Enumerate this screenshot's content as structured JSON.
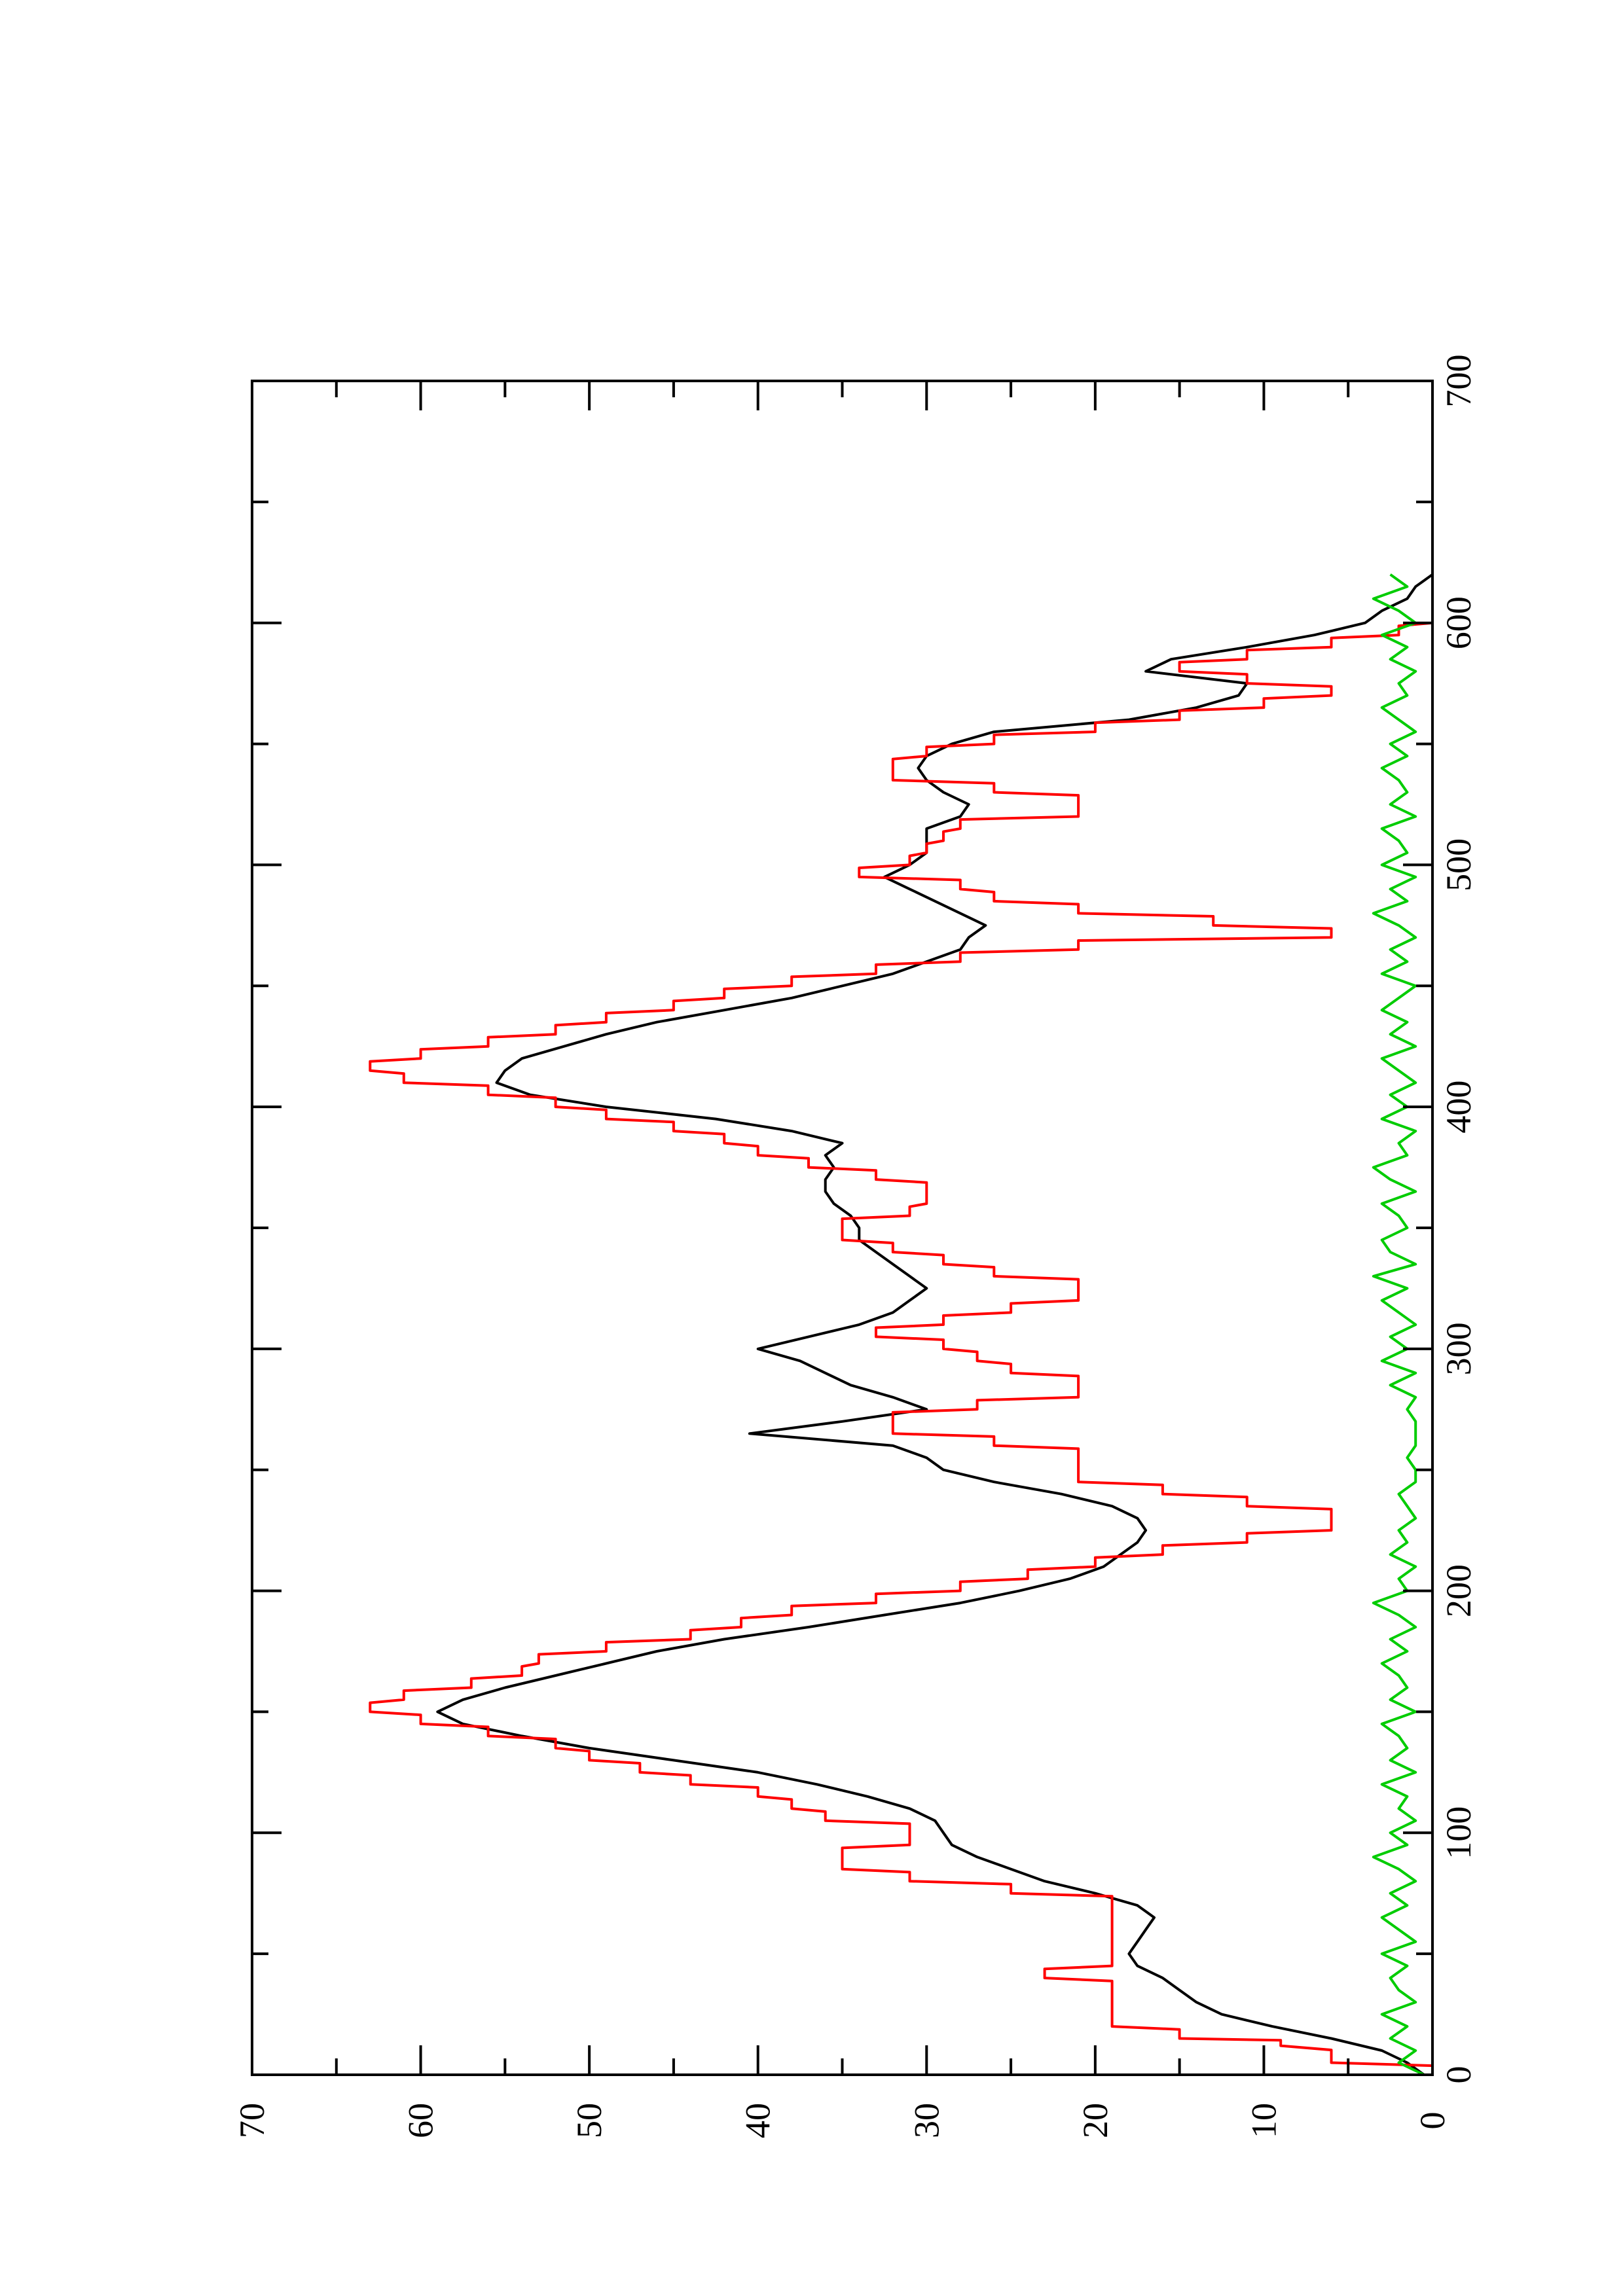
{
  "chart_data": {
    "type": "line",
    "title": "",
    "xlabel": "",
    "ylabel": "",
    "orientation": "rotated 90 degrees counter-clockwise",
    "xlim": [
      0,
      700
    ],
    "ylim": [
      0,
      70
    ],
    "x_ticks": [
      0,
      100,
      200,
      300,
      400,
      500,
      600,
      700
    ],
    "x_tick_labels": [
      "0",
      "100",
      "200",
      "300",
      "400",
      "500",
      "600",
      "700"
    ],
    "y_ticks": [
      0,
      10,
      20,
      30,
      40,
      50,
      60,
      70
    ],
    "y_tick_labels": [
      "0",
      "10",
      "20",
      "30",
      "40",
      "50",
      "60",
      "70"
    ],
    "grid": false,
    "legend": "none",
    "series": [
      {
        "color": "#000000",
        "style": "smooth",
        "x": [
          0,
          5,
          10,
          15,
          20,
          25,
          30,
          35,
          40,
          45,
          50,
          55,
          60,
          65,
          70,
          75,
          80,
          85,
          90,
          95,
          100,
          105,
          110,
          115,
          120,
          125,
          130,
          135,
          140,
          145,
          150,
          155,
          160,
          165,
          170,
          175,
          180,
          185,
          190,
          195,
          200,
          205,
          210,
          215,
          220,
          225,
          230,
          235,
          240,
          245,
          250,
          255,
          260,
          265,
          270,
          275,
          280,
          285,
          290,
          295,
          300,
          305,
          310,
          315,
          320,
          325,
          330,
          335,
          340,
          345,
          350,
          355,
          360,
          365,
          370,
          375,
          380,
          385,
          390,
          395,
          400,
          405,
          410,
          415,
          420,
          425,
          430,
          435,
          440,
          445,
          450,
          455,
          460,
          465,
          470,
          475,
          480,
          485,
          490,
          495,
          500,
          505,
          510,
          515,
          520,
          525,
          530,
          535,
          540,
          545,
          550,
          555,
          560,
          565,
          570,
          575,
          580,
          585,
          590,
          595,
          600,
          605,
          610,
          615,
          620
        ],
        "y": [
          0.5,
          1.5,
          3.0,
          6.0,
          9.5,
          12.5,
          14.0,
          15.0,
          16.0,
          17.5,
          18.0,
          17.5,
          17.0,
          16.5,
          17.5,
          20.0,
          23.0,
          25.0,
          27.0,
          28.5,
          29.0,
          29.5,
          31.0,
          33.5,
          36.5,
          40.0,
          45.0,
          50.0,
          54.0,
          57.5,
          59.0,
          57.5,
          55.0,
          52.0,
          49.0,
          46.0,
          42.0,
          37.0,
          32.5,
          28.0,
          24.5,
          21.5,
          19.5,
          18.5,
          17.5,
          17.0,
          17.5,
          19.0,
          22.0,
          26.0,
          29.0,
          30.0,
          32.0,
          40.5,
          35.0,
          30.0,
          32.0,
          34.5,
          36.0,
          37.5,
          40.0,
          37.0,
          34.0,
          32.0,
          31.0,
          30.0,
          31.0,
          32.0,
          33.0,
          34.0,
          34.0,
          34.5,
          35.5,
          36.0,
          36.0,
          35.5,
          36.0,
          35.0,
          38.0,
          42.5,
          49.0,
          53.5,
          55.5,
          55.0,
          54.0,
          51.5,
          49.0,
          46.0,
          42.0,
          38.0,
          35.0,
          32.0,
          30.0,
          28.0,
          27.5,
          26.5,
          28.0,
          29.5,
          31.0,
          32.5,
          31.0,
          30.0,
          30.0,
          30.0,
          28.0,
          27.5,
          29.0,
          30.0,
          30.5,
          30.0,
          28.5,
          26.0,
          18.0,
          14.0,
          11.5,
          11.0,
          17.0,
          15.5,
          11.0,
          7.0,
          4.0,
          3.0,
          1.5,
          1.0,
          0.0
        ]
      },
      {
        "color": "#ff0000",
        "style": "stepped",
        "x": [
          0,
          5,
          12,
          15,
          20,
          30,
          35,
          40,
          45,
          50,
          55,
          60,
          65,
          70,
          75,
          80,
          85,
          90,
          95,
          100,
          105,
          110,
          115,
          120,
          125,
          130,
          135,
          140,
          145,
          150,
          155,
          160,
          165,
          170,
          175,
          180,
          185,
          190,
          195,
          200,
          205,
          210,
          215,
          220,
          225,
          230,
          235,
          240,
          245,
          250,
          255,
          260,
          265,
          270,
          275,
          280,
          285,
          290,
          295,
          300,
          305,
          310,
          315,
          320,
          325,
          330,
          335,
          340,
          345,
          350,
          355,
          360,
          365,
          370,
          375,
          380,
          385,
          390,
          395,
          400,
          405,
          410,
          415,
          420,
          425,
          430,
          435,
          440,
          445,
          450,
          455,
          460,
          465,
          470,
          475,
          480,
          485,
          490,
          495,
          500,
          505,
          510,
          515,
          520,
          525,
          530,
          535,
          540,
          545,
          550,
          555,
          560,
          565,
          570,
          575,
          580,
          585,
          590,
          595,
          600
        ],
        "y": [
          0,
          6,
          9,
          15,
          19,
          19,
          19,
          23,
          19,
          19,
          19,
          19,
          19,
          19,
          25,
          31,
          35,
          35,
          31,
          31,
          36,
          38,
          40,
          44,
          47,
          50,
          52,
          56,
          60,
          63,
          61,
          57,
          54,
          53,
          49,
          44,
          41,
          38,
          33,
          28,
          24,
          20,
          16,
          11,
          6,
          6,
          11,
          16,
          21,
          21,
          21,
          26,
          32,
          32,
          27,
          21,
          21,
          25,
          27,
          29,
          33,
          29,
          25,
          21,
          21,
          26,
          29,
          32,
          35,
          35,
          31,
          30,
          30,
          33,
          37,
          40,
          42,
          45,
          49,
          52,
          56,
          61,
          63,
          60,
          56,
          52,
          49,
          45,
          42,
          38,
          33,
          28,
          21,
          6,
          13,
          21,
          26,
          28,
          34,
          31,
          30,
          29,
          28,
          21,
          21,
          26,
          32,
          32,
          30,
          26,
          20,
          15,
          10,
          6,
          11,
          15,
          11,
          6,
          2,
          0
        ]
      },
      {
        "color": "#00cc00",
        "style": "noisy",
        "x": [
          0,
          5,
          10,
          15,
          20,
          25,
          30,
          35,
          40,
          45,
          50,
          55,
          60,
          65,
          70,
          75,
          80,
          85,
          90,
          95,
          100,
          105,
          110,
          115,
          120,
          125,
          130,
          135,
          140,
          145,
          150,
          155,
          160,
          165,
          170,
          175,
          180,
          185,
          190,
          195,
          200,
          205,
          210,
          215,
          220,
          225,
          230,
          235,
          240,
          245,
          250,
          255,
          260,
          265,
          270,
          275,
          280,
          285,
          290,
          295,
          300,
          305,
          310,
          315,
          320,
          325,
          330,
          335,
          340,
          345,
          350,
          355,
          360,
          365,
          370,
          375,
          380,
          385,
          390,
          395,
          400,
          405,
          410,
          415,
          420,
          425,
          430,
          435,
          440,
          445,
          450,
          455,
          460,
          465,
          470,
          475,
          480,
          485,
          490,
          495,
          500,
          505,
          510,
          515,
          520,
          525,
          530,
          535,
          540,
          545,
          550,
          555,
          560,
          565,
          570,
          575,
          580,
          585,
          590,
          595,
          600,
          605,
          610,
          615,
          620
        ],
        "y": [
          0.5,
          2.0,
          1.0,
          2.5,
          1.5,
          3.0,
          1.0,
          2.0,
          2.5,
          1.5,
          3.0,
          1.0,
          2.0,
          3.0,
          1.5,
          2.5,
          1.0,
          2.0,
          3.5,
          1.5,
          2.5,
          1.0,
          2.0,
          1.5,
          3.0,
          1.0,
          2.5,
          1.5,
          2.0,
          3.0,
          1.0,
          2.5,
          1.5,
          2.0,
          3.0,
          1.5,
          2.5,
          1.0,
          2.0,
          3.5,
          1.5,
          2.0,
          1.0,
          2.5,
          1.5,
          2.0,
          1.0,
          1.5,
          2.0,
          1.0,
          1.0,
          1.5,
          1.0,
          1.0,
          1.0,
          1.5,
          1.0,
          2.5,
          1.0,
          3.0,
          1.5,
          2.5,
          1.0,
          2.0,
          3.0,
          1.5,
          3.5,
          1.0,
          2.5,
          3.0,
          1.5,
          2.0,
          3.0,
          1.0,
          2.5,
          3.5,
          1.5,
          2.0,
          1.0,
          3.0,
          1.5,
          2.5,
          1.0,
          2.0,
          3.0,
          1.0,
          2.5,
          1.5,
          3.0,
          2.0,
          1.0,
          3.0,
          1.5,
          2.5,
          1.0,
          2.0,
          3.5,
          1.5,
          2.5,
          1.0,
          3.0,
          1.5,
          2.0,
          3.0,
          1.0,
          2.5,
          1.5,
          2.0,
          3.0,
          1.5,
          2.5,
          1.0,
          2.0,
          3.0,
          1.5,
          2.0,
          1.0,
          2.5,
          1.5,
          3.0,
          1.0,
          2.0,
          3.5,
          1.5,
          2.5
        ]
      }
    ]
  }
}
